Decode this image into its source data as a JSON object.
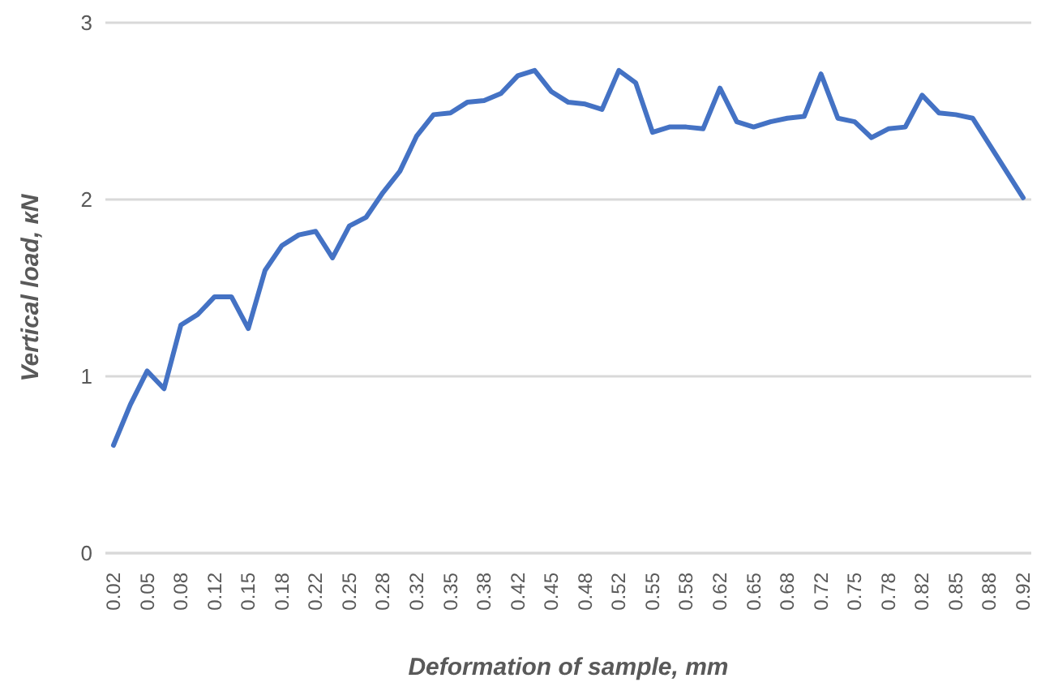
{
  "chart_data": {
    "type": "line",
    "xlabel": "Deformation of sample, mm",
    "ylabel": "Vertical load, кN",
    "categories": [
      "0.02",
      null,
      "0.05",
      null,
      "0.08",
      null,
      "0.12",
      null,
      "0.15",
      null,
      "0.18",
      null,
      "0.22",
      null,
      "0.25",
      null,
      "0.28",
      null,
      "0.32",
      null,
      "0.35",
      null,
      "0.38",
      null,
      "0.42",
      null,
      "0.45",
      null,
      "0.48",
      null,
      "0.52",
      null,
      "0.55",
      null,
      "0.58",
      null,
      "0.62",
      null,
      "0.65",
      null,
      "0.68",
      null,
      "0.72",
      null,
      "0.75",
      null,
      "0.78",
      null,
      "0.82",
      null,
      "0.85",
      null,
      "0.88",
      null,
      "0.92"
    ],
    "series": [
      {
        "color": "#4472c4",
        "values": [
          0.61,
          0.84,
          1.03,
          0.93,
          1.29,
          1.35,
          1.45,
          1.45,
          1.27,
          1.6,
          1.74,
          1.8,
          1.82,
          1.67,
          1.85,
          1.9,
          2.04,
          2.16,
          2.36,
          2.48,
          2.49,
          2.55,
          2.56,
          2.6,
          2.7,
          2.73,
          2.61,
          2.55,
          2.54,
          2.51,
          2.73,
          2.66,
          2.38,
          2.41,
          2.41,
          2.4,
          2.63,
          2.44,
          2.41,
          2.44,
          2.46,
          2.47,
          2.71,
          2.46,
          2.44,
          2.35,
          2.4,
          2.41,
          2.59,
          2.49,
          2.48,
          2.46,
          2.31,
          2.16,
          2.01
        ]
      }
    ],
    "ylim": [
      0,
      3
    ],
    "yticks": [
      0,
      1,
      2,
      3
    ],
    "grid": "y",
    "legend": false,
    "marker": "none",
    "line_style": "solid"
  }
}
